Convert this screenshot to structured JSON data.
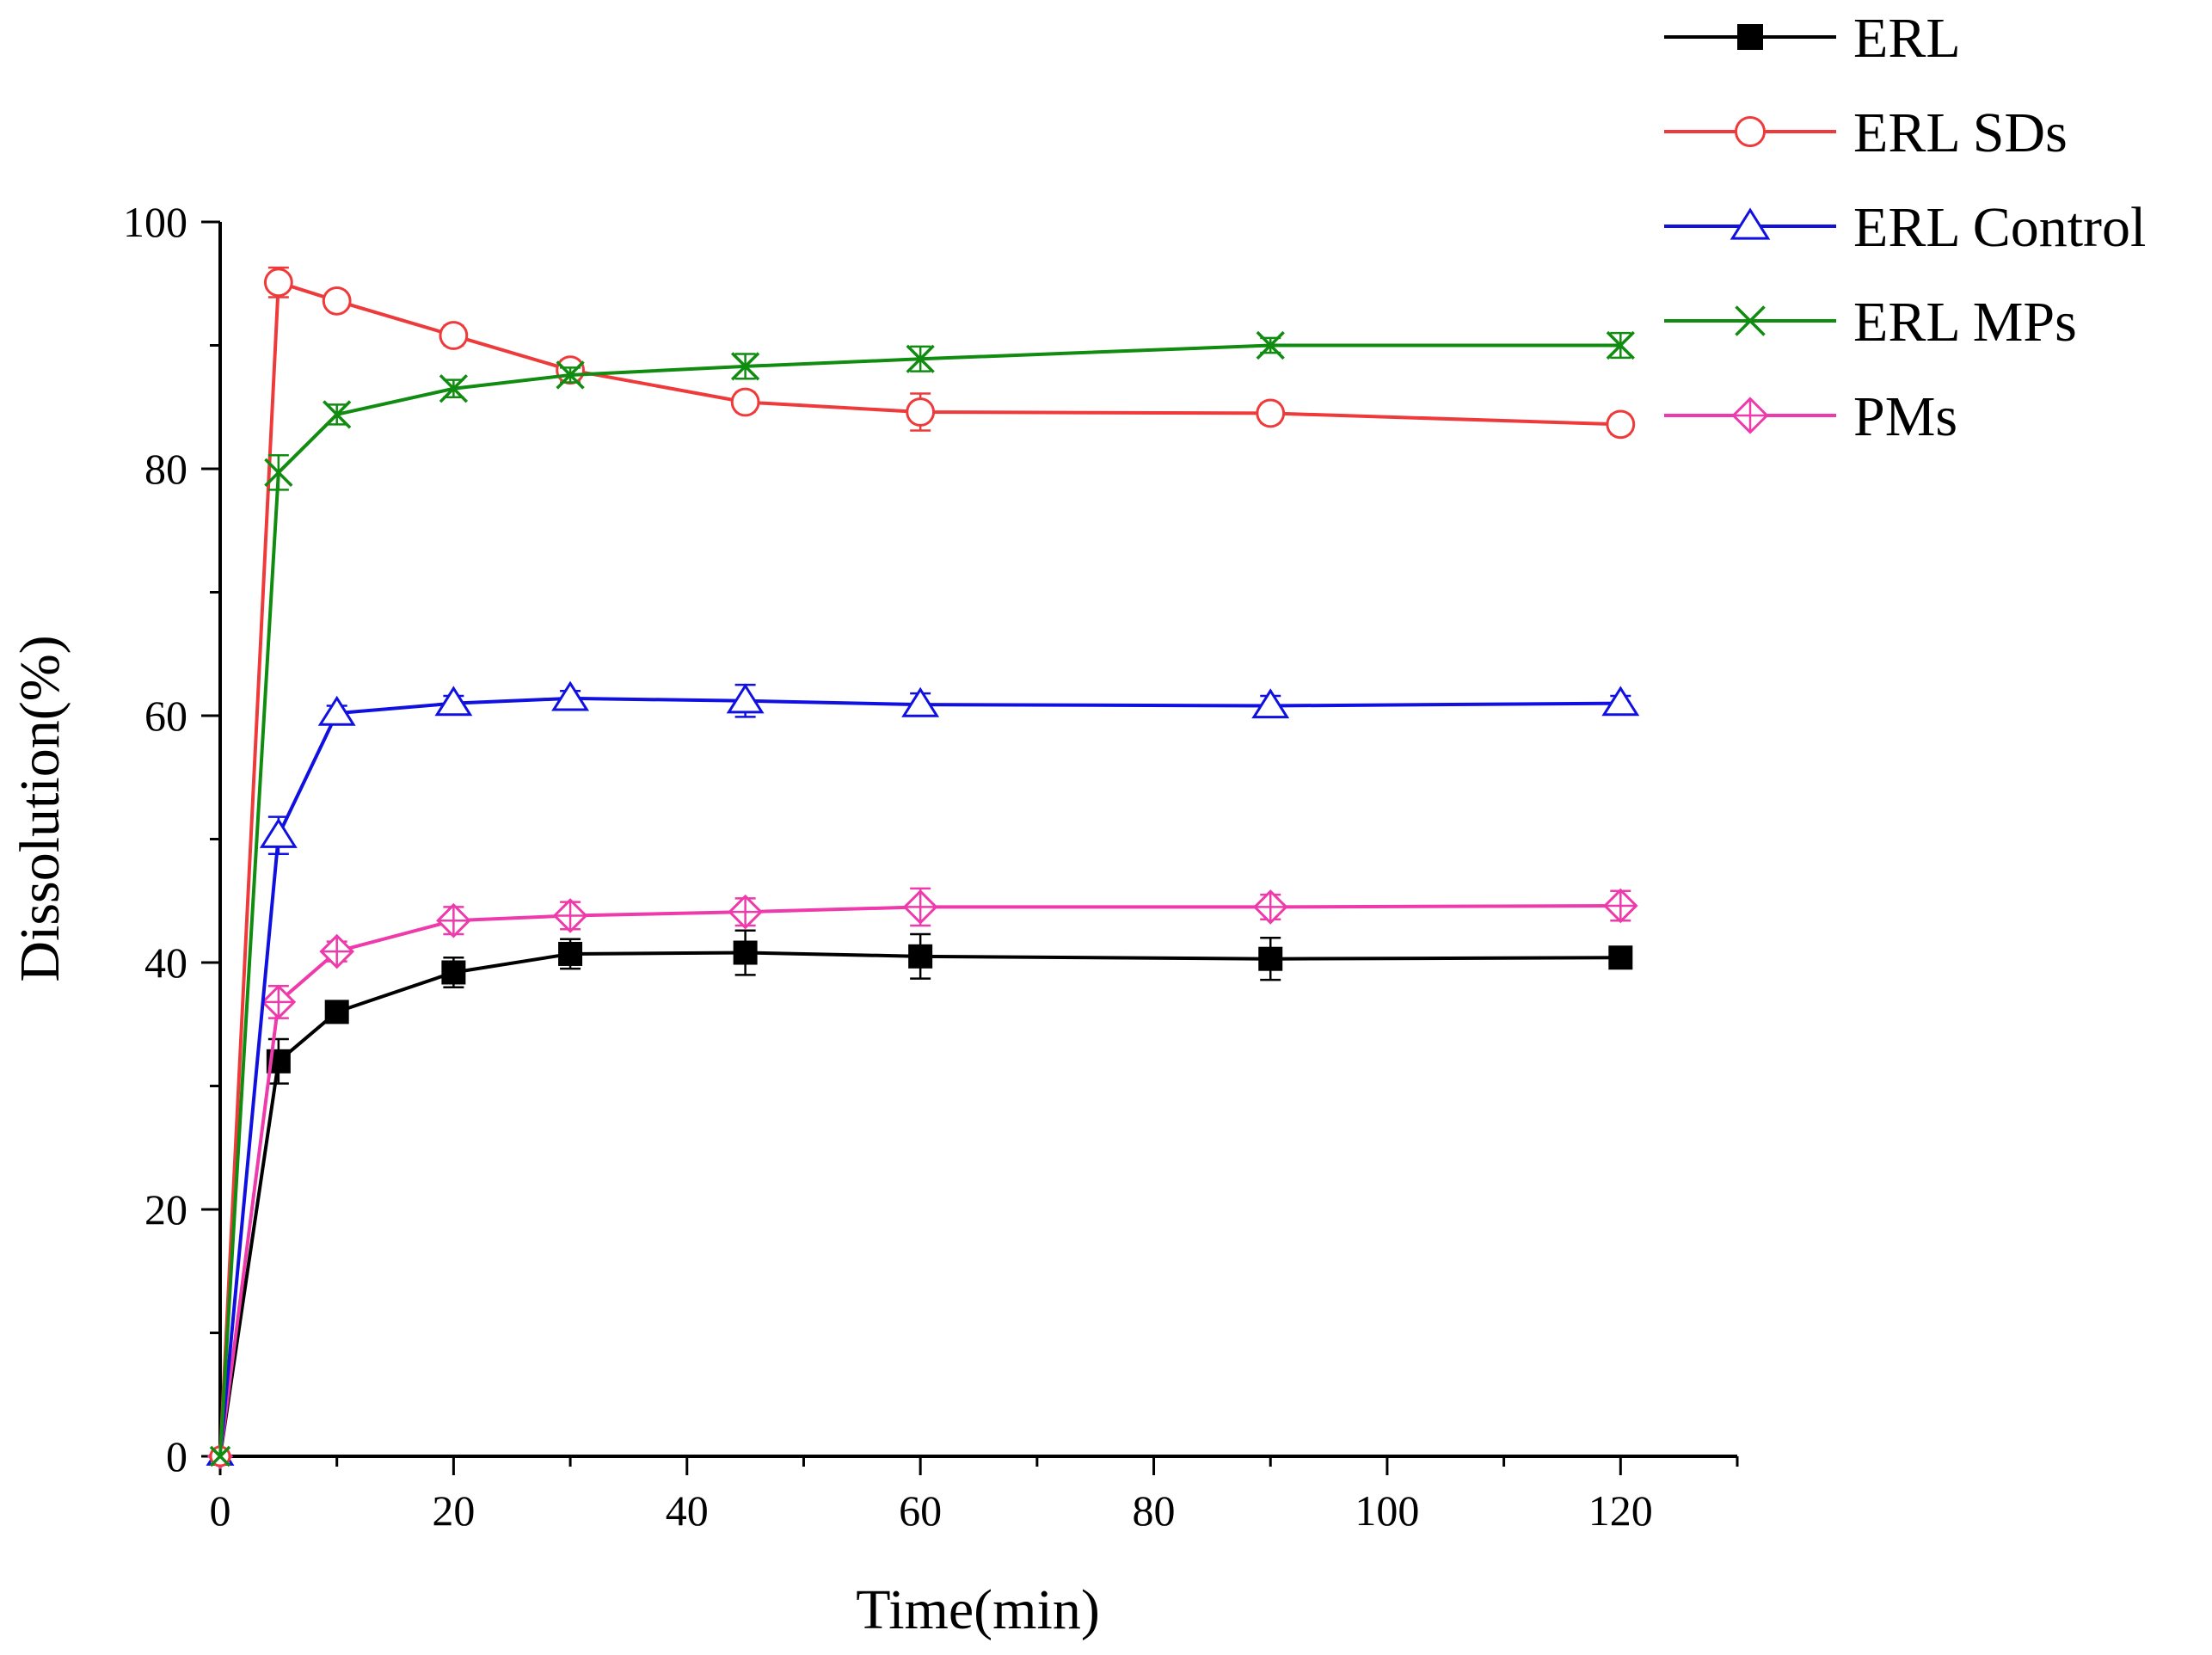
{
  "chart_data": {
    "type": "line",
    "title": "",
    "xlabel": "Time(min)",
    "ylabel": "Dissolution(%)",
    "xlim": [
      0,
      130
    ],
    "ylim": [
      0,
      100
    ],
    "xticks": [
      0,
      20,
      40,
      60,
      80,
      100,
      120
    ],
    "xtick_labels": [
      "0",
      "20",
      "40",
      "60",
      "80",
      "100",
      "120"
    ],
    "yticks": [
      0,
      20,
      40,
      60,
      80,
      100
    ],
    "ytick_labels": [
      "0",
      "20",
      "40",
      "60",
      "80",
      "100"
    ],
    "grid": false,
    "legend_position": "top-right",
    "x": [
      0,
      5,
      10,
      20,
      30,
      45,
      60,
      90,
      120
    ],
    "series": [
      {
        "name": "ERL",
        "color": "#000000",
        "marker": "filled-square",
        "values": [
          0,
          32.0,
          36.0,
          39.2,
          40.7,
          40.8,
          40.5,
          40.3,
          40.4
        ],
        "errors": [
          0,
          1.8,
          0.8,
          1.2,
          1.2,
          1.8,
          1.8,
          1.7,
          0.5
        ]
      },
      {
        "name": "ERL SDs",
        "color": "#ee3a3a",
        "marker": "open-circle",
        "values": [
          0,
          95.1,
          93.6,
          90.8,
          88.0,
          85.4,
          84.6,
          84.5,
          83.6
        ],
        "errors": [
          0,
          1.2,
          0.7,
          0.8,
          0.8,
          0.8,
          1.5,
          0.8,
          0.8
        ]
      },
      {
        "name": "ERL Control",
        "color": "#1010e0",
        "marker": "open-triangle",
        "values": [
          0,
          50.3,
          60.2,
          61.0,
          61.4,
          61.2,
          60.9,
          60.8,
          61.0
        ],
        "errors": [
          0,
          1.5,
          0.6,
          0.6,
          0.6,
          1.3,
          0.9,
          0.8,
          0.6
        ]
      },
      {
        "name": "ERL MPs",
        "color": "#108c10",
        "marker": "x-cross",
        "values": [
          0,
          79.7,
          84.4,
          86.5,
          87.6,
          88.3,
          88.9,
          90.0,
          90.0
        ],
        "errors": [
          0,
          1.4,
          0.8,
          0.7,
          0.6,
          1.0,
          1.0,
          0.6,
          1.0
        ]
      },
      {
        "name": "PMs",
        "color": "#ee3aaa",
        "marker": "open-diamond",
        "values": [
          0,
          36.8,
          40.9,
          43.4,
          43.8,
          44.1,
          44.5,
          44.5,
          44.6
        ],
        "errors": [
          0,
          1.3,
          0.8,
          1.1,
          1.1,
          1.1,
          1.5,
          1.0,
          1.2
        ]
      }
    ]
  }
}
